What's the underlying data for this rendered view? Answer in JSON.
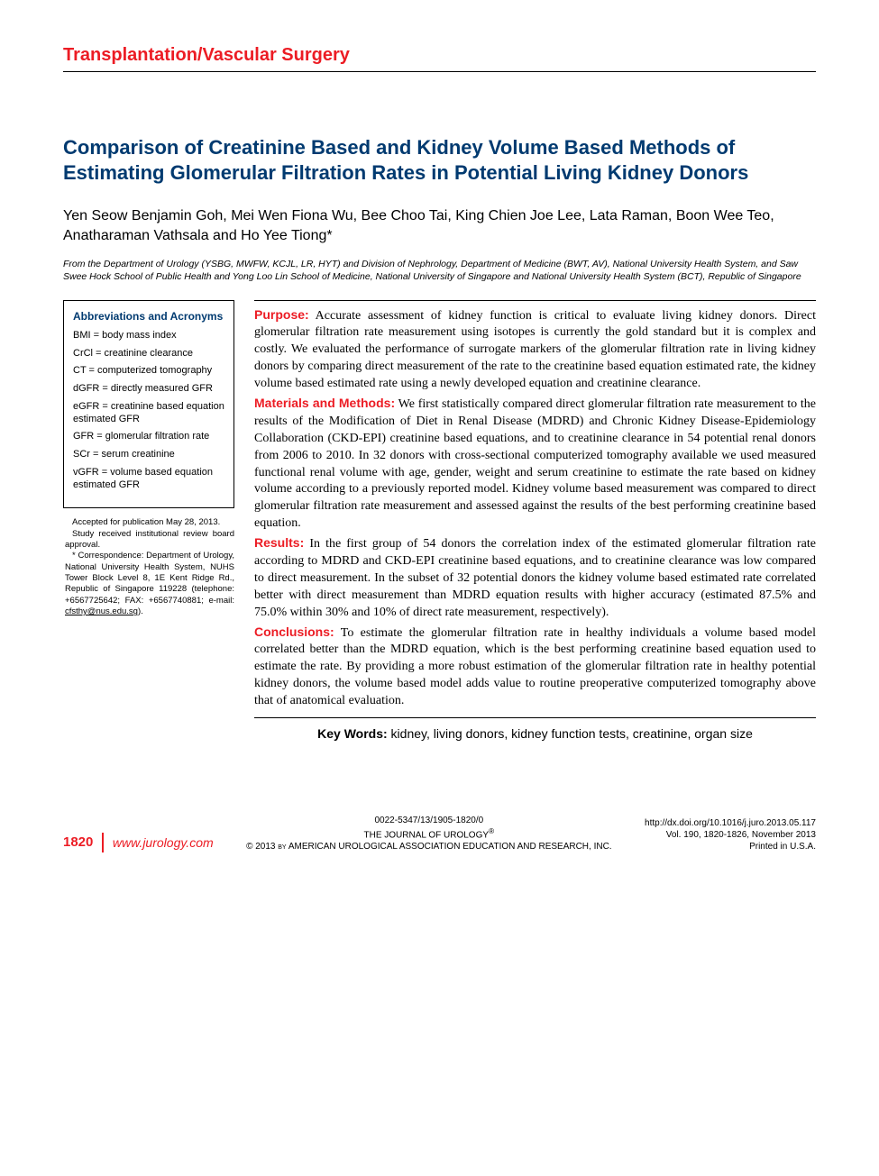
{
  "section_header": "Transplantation/Vascular Surgery",
  "title": "Comparison of Creatinine Based and Kidney Volume Based Methods of Estimating Glomerular Filtration Rates in Potential Living Kidney Donors",
  "authors": "Yen Seow Benjamin Goh, Mei Wen Fiona Wu, Bee Choo Tai, King Chien Joe Lee, Lata Raman, Boon Wee Teo, Anatharaman Vathsala and Ho Yee Tiong*",
  "affiliation": "From the Department of Urology (YSBG, MWFW, KCJL, LR, HYT) and Division of Nephrology, Department of Medicine (BWT, AV), National University Health System, and Saw Swee Hock School of Public Health and Yong Loo Lin School of Medicine, National University of Singapore and National University Health System (BCT), Republic of Singapore",
  "abbreviations": {
    "title": "Abbreviations and Acronyms",
    "items": [
      "BMI = body mass index",
      "CrCl = creatinine clearance",
      "CT = computerized tomography",
      "dGFR = directly measured GFR",
      "eGFR = creatinine based equation estimated GFR",
      "GFR = glomerular filtration rate",
      "SCr = serum creatinine",
      "vGFR = volume based equation estimated GFR"
    ]
  },
  "sidebar_notes": {
    "accepted": "Accepted for publication May 28, 2013.",
    "irb": "Study received institutional review board approval.",
    "correspondence": "* Correspondence: Department of Urology, National University Health System, NUHS Tower Block Level 8, 1E Kent Ridge Rd., Republic of Singapore 119228 (telephone: +6567725642; FAX: +6567740881; e-mail: ",
    "email": "cfsthy@nus.edu.sg",
    "corr_end": ")."
  },
  "abstract": {
    "purpose": {
      "label": "Purpose:",
      "text": " Accurate assessment of kidney function is critical to evaluate living kidney donors. Direct glomerular filtration rate measurement using isotopes is currently the gold standard but it is complex and costly. We evaluated the performance of surrogate markers of the glomerular filtration rate in living kidney donors by comparing direct measurement of the rate to the creatinine based equation estimated rate, the kidney volume based estimated rate using a newly developed equation and creatinine clearance."
    },
    "methods": {
      "label": "Materials and Methods:",
      "text": " We first statistically compared direct glomerular filtration rate measurement to the results of the Modification of Diet in Renal Disease (MDRD) and Chronic Kidney Disease-Epidemiology Collaboration (CKD-EPI) creatinine based equations, and to creatinine clearance in 54 potential renal donors from 2006 to 2010. In 32 donors with cross-sectional computerized tomography available we used measured functional renal volume with age, gender, weight and serum creatinine to estimate the rate based on kidney volume according to a previously reported model. Kidney volume based measurement was compared to direct glomerular filtration rate measurement and assessed against the results of the best performing creatinine based equation."
    },
    "results": {
      "label": "Results:",
      "text": " In the first group of 54 donors the correlation index of the estimated glomerular filtration rate according to MDRD and CKD-EPI creatinine based equations, and to creatinine clearance was low compared to direct measurement. In the subset of 32 potential donors the kidney volume based estimated rate correlated better with direct measurement than MDRD equation results with higher accuracy (estimated 87.5% and 75.0% within 30% and 10% of direct rate measurement, respectively)."
    },
    "conclusions": {
      "label": "Conclusions:",
      "text": " To estimate the glomerular filtration rate in healthy individuals a volume based model correlated better than the MDRD equation, which is the best performing creatinine based equation used to estimate the rate. By providing a more robust estimation of the glomerular filtration rate in healthy potential kidney donors, the volume based model adds value to routine preoperative computerized tomography above that of anatomical evaluation."
    }
  },
  "keywords": {
    "label": "Key Words:",
    "text": " kidney, living donors, kidney function tests, creatinine, organ size"
  },
  "footer": {
    "page_number": "1820",
    "url": "www.jurology.com",
    "issn": "0022-5347/13/1905-1820/0",
    "journal": "THE JOURNAL OF UROLOGY",
    "copyright": "© 2013 by AMERICAN UROLOGICAL ASSOCIATION EDUCATION AND RESEARCH, INC.",
    "doi": "http://dx.doi.org/10.1016/j.juro.2013.05.117",
    "volume": "Vol. 190, 1820-1826, November 2013",
    "printed": "Printed in U.S.A."
  },
  "colors": {
    "red": "#ec1c24",
    "navy": "#003a70",
    "black": "#000000",
    "bg": "#ffffff"
  },
  "typography": {
    "body_font": "Arial",
    "abstract_font": "Georgia",
    "title_size_pt": 16,
    "body_size_pt": 11,
    "sidebar_size_pt": 8
  }
}
